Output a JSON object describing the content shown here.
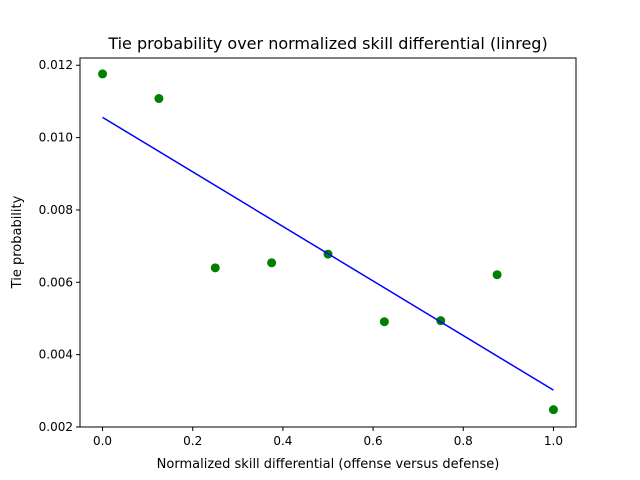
{
  "chart_data": {
    "type": "scatter",
    "title": "Tie probability over normalized skill differential (linreg)",
    "xlabel": "Normalized skill differential (offense versus defense)",
    "ylabel": "Tie probability",
    "xlim": [
      -0.05,
      1.05
    ],
    "ylim": [
      0.002,
      0.0122
    ],
    "xticks": [
      "0.0",
      "0.2",
      "0.4",
      "0.6",
      "0.8",
      "1.0"
    ],
    "yticks": [
      "0.002",
      "0.004",
      "0.006",
      "0.008",
      "0.010",
      "0.012"
    ],
    "grid": false,
    "legend": "none",
    "series": [
      {
        "type": "scatter",
        "color": "#008000",
        "x": [
          0.0,
          0.125,
          0.25,
          0.375,
          0.5,
          0.625,
          0.75,
          0.875,
          1.0
        ],
        "y": [
          0.01176,
          0.01108,
          0.0064,
          0.00654,
          0.00678,
          0.00491,
          0.00494,
          0.00621,
          0.00248
        ]
      },
      {
        "type": "line",
        "color": "#0000ff",
        "x": [
          0.0,
          1.0
        ],
        "y": [
          0.01056,
          0.00302
        ]
      }
    ]
  }
}
